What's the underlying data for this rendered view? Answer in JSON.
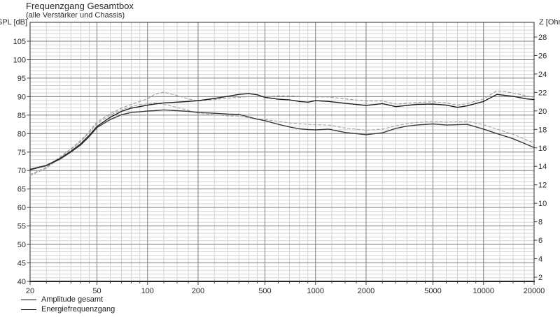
{
  "header": {
    "title": "Frequenzgang Gesamtbox",
    "subtitle": "(alle Verstärker und Chassis)"
  },
  "axis_labels": {
    "left": "SPL [dB]",
    "right": "Z [Ohm]"
  },
  "legend": {
    "items": [
      {
        "label": "Amplitude gesamt"
      },
      {
        "label": "Energiefrequenzgang"
      }
    ]
  },
  "colors": {
    "background": "#ffffff",
    "frame": "#2a2a2a",
    "grid_major": "#7d7d7d",
    "grid_minor": "#d3d3d3",
    "tick": "#404040",
    "text": "#2b2b2b",
    "curve_solid_upper": "#1c1c1c",
    "curve_solid_lower": "#3a3a3a",
    "curve_dashed": "#9b9b9b"
  },
  "chart_data": {
    "type": "line",
    "title": "Frequenzgang Gesamtbox",
    "subtitle": "(alle Verstärker und Chassis)",
    "x_axis": {
      "scale": "log",
      "min": 20,
      "max": 20000,
      "unit": "Hz",
      "tick_labels": [
        20,
        50,
        100,
        200,
        500,
        1000,
        2000,
        5000,
        10000,
        20000
      ],
      "minor_multipliers": [
        1.25,
        1.5,
        1.75,
        2.5,
        3,
        3.5,
        4,
        4.5,
        6,
        7,
        8,
        9
      ]
    },
    "y_left_axis": {
      "label": "SPL [dB]",
      "min": 40,
      "max": 105,
      "major_step": 5,
      "minor_step": 1,
      "ticks": [
        105,
        100,
        95,
        90,
        85,
        80,
        75,
        70,
        65,
        60,
        55,
        50,
        45,
        40
      ]
    },
    "y_right_axis": {
      "label": "Z [Ohm]",
      "min": 2,
      "max": 28,
      "major_step": 2,
      "ticks": [
        28,
        26,
        24,
        22,
        20,
        18,
        16,
        14,
        12,
        10,
        8,
        6,
        4,
        2
      ]
    },
    "grid": "major+minor",
    "legend_position": "bottom-left",
    "frequencies_hz": [
      20,
      25,
      30,
      35,
      40,
      45,
      50,
      60,
      70,
      80,
      90,
      100,
      110,
      125,
      150,
      175,
      200,
      250,
      300,
      350,
      400,
      450,
      500,
      600,
      700,
      800,
      900,
      1000,
      1200,
      1500,
      2000,
      2500,
      3000,
      3500,
      4000,
      5000,
      6000,
      7000,
      8000,
      10000,
      12000,
      15000,
      18000,
      20000
    ],
    "series": [
      {
        "name": "unlabeled dashed curve (upper)",
        "style": "dashed",
        "color": "#9b9b9b",
        "values_db": [
          68.9,
          70.9,
          73.6,
          75.9,
          78.1,
          80.6,
          83.1,
          85.4,
          86.9,
          87.9,
          88.7,
          89.4,
          90.6,
          91.2,
          90.3,
          89.4,
          88.8,
          89.2,
          89.6,
          89.8,
          90.0,
          90.0,
          90.0,
          90.2,
          90.2,
          90.1,
          90.0,
          89.9,
          89.9,
          89.4,
          88.8,
          88.8,
          88.0,
          88.2,
          88.4,
          88.6,
          88.3,
          87.7,
          88.1,
          89.4,
          91.6,
          91.0,
          90.2,
          89.8
        ]
      },
      {
        "name": "unlabeled dashed curve (lower)",
        "style": "dashed",
        "color": "#a6a6a6",
        "values_db": [
          68.6,
          70.6,
          73.3,
          75.6,
          77.8,
          80.2,
          82.7,
          85.0,
          86.4,
          87.3,
          87.8,
          88.1,
          88.3,
          87.9,
          87.1,
          86.3,
          85.5,
          85.1,
          84.8,
          84.7,
          84.3,
          84.0,
          83.8,
          83.3,
          82.9,
          82.7,
          82.5,
          82.4,
          82.3,
          81.5,
          80.9,
          81.2,
          82.1,
          82.7,
          83.0,
          83.3,
          83.1,
          83.2,
          83.3,
          82.4,
          81.2,
          79.8,
          78.3,
          77.4
        ]
      },
      {
        "name": "Amplitude gesamt",
        "style": "solid",
        "color": "#1c1c1c",
        "values_db": [
          70.3,
          71.4,
          73.2,
          75.2,
          77.2,
          79.5,
          81.9,
          84.4,
          86.0,
          86.9,
          87.3,
          87.7,
          88.0,
          88.3,
          88.5,
          88.7,
          88.9,
          89.5,
          90.1,
          90.6,
          90.8,
          90.5,
          89.8,
          89.3,
          89.1,
          88.7,
          88.5,
          88.9,
          88.7,
          88.2,
          87.6,
          88.1,
          87.3,
          87.6,
          87.9,
          88.0,
          87.7,
          87.1,
          87.5,
          88.7,
          90.6,
          90.1,
          89.4,
          89.2
        ]
      },
      {
        "name": "Energiefrequenzgang",
        "style": "solid",
        "color": "#3a3a3a",
        "values_db": [
          70.2,
          71.3,
          73.0,
          75.0,
          76.9,
          79.2,
          81.6,
          83.8,
          85.1,
          85.7,
          85.9,
          86.1,
          86.2,
          86.4,
          86.2,
          86.0,
          85.7,
          85.5,
          85.3,
          85.2,
          84.5,
          83.9,
          83.5,
          82.5,
          81.8,
          81.3,
          81.1,
          81.0,
          81.2,
          80.3,
          79.7,
          80.2,
          81.4,
          82.0,
          82.3,
          82.6,
          82.3,
          82.4,
          82.5,
          81.2,
          80.0,
          78.6,
          77.1,
          76.2
        ]
      }
    ]
  }
}
